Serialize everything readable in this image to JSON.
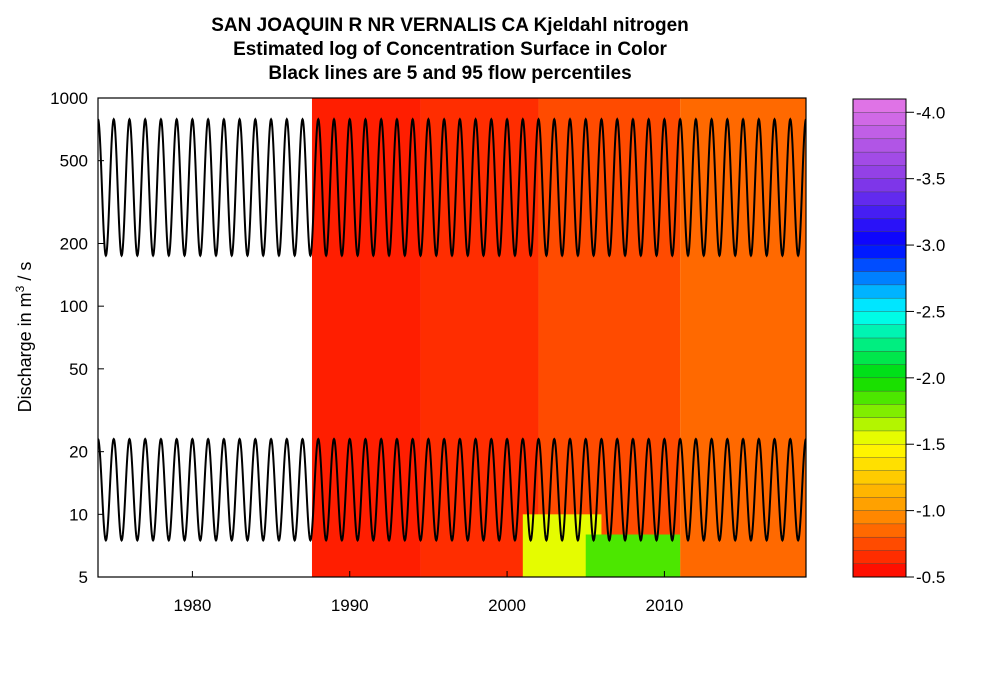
{
  "chart_data": {
    "type": "heatmap",
    "title": "SAN JOAQUIN R NR VERNALIS CA    Kjeldahl nitrogen",
    "subtitle_lines": [
      "Estimated log of Concentration Surface in Color",
      "Black lines are 5 and 95 flow percentiles"
    ],
    "ylabel_parts": {
      "main": "Discharge in m",
      "sup": "3",
      "tail": " / s"
    },
    "xlim": [
      1974,
      2019
    ],
    "ylim": [
      5,
      1000
    ],
    "y_scale": "log",
    "x_ticks": [
      1980,
      1990,
      2000,
      2010
    ],
    "y_ticks": [
      5,
      10,
      20,
      50,
      100,
      200,
      500,
      1000
    ],
    "colorbar": {
      "range": [
        -4.1,
        -0.5
      ],
      "ticks": [
        "-0.5",
        "-1.0",
        "-1.5",
        "-2.0",
        "-2.5",
        "-3.0",
        "-3.5",
        "-4.0"
      ],
      "tick_values": [
        -0.5,
        -1.0,
        -1.5,
        -2.0,
        -2.5,
        -3.0,
        -3.5,
        -4.0
      ],
      "levels": 36
    },
    "percentile_lines": {
      "upper": {
        "min": 175,
        "max": 790
      },
      "lower": {
        "min": 7.5,
        "max": 23
      },
      "cycles_per_year": 1,
      "start_year": 1974,
      "end_year": 2019
    },
    "surface_regions": [
      {
        "x0": 1974.0,
        "x1": 1987.6,
        "y0": 5,
        "y1": 1000,
        "value": null
      },
      {
        "x0": 1987.6,
        "x1": 1994.5,
        "y0": 5,
        "y1": 1000,
        "value": -0.6
      },
      {
        "x0": 1994.5,
        "x1": 2002.0,
        "y0": 5,
        "y1": 1000,
        "value": -0.65
      },
      {
        "x0": 2002.0,
        "x1": 2011.0,
        "y0": 5,
        "y1": 1000,
        "value": -0.75
      },
      {
        "x0": 2011.0,
        "x1": 2019.0,
        "y0": 5,
        "y1": 1000,
        "value": -0.85
      },
      {
        "x0": 2001.0,
        "x1": 2006.0,
        "y0": 5,
        "y1": 10,
        "value": -1.55
      },
      {
        "x0": 2005.0,
        "x1": 2011.0,
        "y0": 5,
        "y1": 8,
        "value": -1.85
      }
    ]
  }
}
